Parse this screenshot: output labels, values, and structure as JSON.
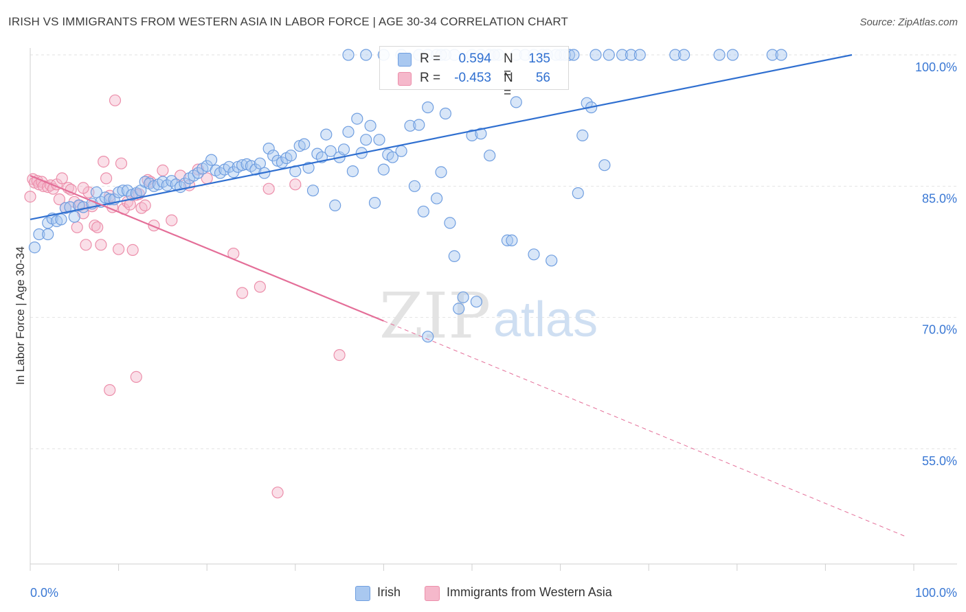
{
  "header": {
    "title": "IRISH VS IMMIGRANTS FROM WESTERN ASIA IN LABOR FORCE | AGE 30-34 CORRELATION CHART",
    "source": "Source: ZipAtlas.com"
  },
  "watermark": {
    "zip": "ZIP",
    "atlas": "atlas"
  },
  "legend_top": {
    "rows": [
      {
        "r_label": "R =",
        "r_value": "0.594",
        "n_label": "N =",
        "n_value": "135",
        "color": "#a9c8f0"
      },
      {
        "r_label": "R =",
        "r_value": "-0.453",
        "n_label": "N =",
        "n_value": "56",
        "color": "#f5b8cb"
      }
    ]
  },
  "legend_bottom": {
    "items": [
      {
        "label": "Irish",
        "color": "#a9c8f0"
      },
      {
        "label": "Immigrants from Western Asia",
        "color": "#f5b8cb"
      }
    ]
  },
  "chart_data": {
    "type": "scatter",
    "title": "IRISH VS IMMIGRANTS FROM WESTERN ASIA IN LABOR FORCE | AGE 30-34 CORRELATION CHART",
    "xlabel": "",
    "ylabel": "In Labor Force | Age 30-34",
    "xlim": [
      0,
      100
    ],
    "ylim": [
      40,
      101
    ],
    "x_tick_labels": [
      "0.0%",
      "100.0%"
    ],
    "y_ticks": [
      100,
      85,
      70,
      55
    ],
    "y_tick_labels": [
      "100.0%",
      "85.0%",
      "70.0%",
      "55.0%"
    ],
    "grid": true,
    "legend": "top-center",
    "series": [
      {
        "name": "Irish",
        "color": "#a9c8f0",
        "edge": "#6f9ee0",
        "trend": {
          "x0": 0,
          "y0": 81.2,
          "x1": 93,
          "y1": 100.0,
          "color": "#2f6fd0"
        },
        "points": [
          [
            0.5,
            78
          ],
          [
            1,
            79.5
          ],
          [
            2,
            79.5
          ],
          [
            2,
            80.8
          ],
          [
            2.5,
            81.3
          ],
          [
            3,
            81
          ],
          [
            3.5,
            81.2
          ],
          [
            4,
            82.5
          ],
          [
            4.5,
            82.6
          ],
          [
            5,
            81.5
          ],
          [
            5.5,
            82.8
          ],
          [
            6,
            82.6
          ],
          [
            7,
            83
          ],
          [
            7.5,
            84.3
          ],
          [
            8,
            83.2
          ],
          [
            8.5,
            83.7
          ],
          [
            9,
            83.5
          ],
          [
            9.5,
            83.5
          ],
          [
            10,
            84.3
          ],
          [
            10.5,
            84.5
          ],
          [
            11,
            84.5
          ],
          [
            11.5,
            84
          ],
          [
            12,
            84.2
          ],
          [
            12.5,
            84.5
          ],
          [
            13,
            85.5
          ],
          [
            13.5,
            85.3
          ],
          [
            14,
            85
          ],
          [
            14.5,
            85.2
          ],
          [
            15,
            85.5
          ],
          [
            15.5,
            85.1
          ],
          [
            16,
            85.6
          ],
          [
            16.5,
            85.2
          ],
          [
            17,
            84.9
          ],
          [
            17.5,
            85.3
          ],
          [
            18,
            85.9
          ],
          [
            18.5,
            86.2
          ],
          [
            19,
            86.5
          ],
          [
            19.5,
            87
          ],
          [
            20,
            87.3
          ],
          [
            20.5,
            88
          ],
          [
            21,
            86.8
          ],
          [
            21.5,
            86.5
          ],
          [
            22,
            86.9
          ],
          [
            22.5,
            87.2
          ],
          [
            23,
            86.6
          ],
          [
            23.5,
            87.2
          ],
          [
            24,
            87.4
          ],
          [
            24.5,
            87.5
          ],
          [
            25,
            87.3
          ],
          [
            25.5,
            86.9
          ],
          [
            26,
            87.6
          ],
          [
            26.5,
            86.5
          ],
          [
            27,
            89.3
          ],
          [
            27.5,
            88.5
          ],
          [
            28,
            87.9
          ],
          [
            28.5,
            87.7
          ],
          [
            29,
            88.2
          ],
          [
            29.5,
            88.5
          ],
          [
            30,
            86.7
          ],
          [
            30.5,
            89.6
          ],
          [
            31,
            89.8
          ],
          [
            31.5,
            87.1
          ],
          [
            32,
            84.5
          ],
          [
            32.5,
            88.7
          ],
          [
            33,
            88.3
          ],
          [
            33.5,
            90.9
          ],
          [
            34,
            89
          ],
          [
            34.5,
            82.8
          ],
          [
            35,
            88.3
          ],
          [
            35.5,
            89.2
          ],
          [
            36,
            91.2
          ],
          [
            36.5,
            86.7
          ],
          [
            37,
            92.7
          ],
          [
            37.5,
            88.8
          ],
          [
            38,
            90.3
          ],
          [
            38.5,
            91.9
          ],
          [
            39,
            83.1
          ],
          [
            39.5,
            90.3
          ],
          [
            40,
            86.9
          ],
          [
            40.5,
            88.6
          ],
          [
            41,
            88.3
          ],
          [
            42,
            89
          ],
          [
            43,
            91.9
          ],
          [
            43.5,
            85
          ],
          [
            44,
            92
          ],
          [
            44.5,
            82.1
          ],
          [
            45,
            94
          ],
          [
            46,
            83.6
          ],
          [
            46.5,
            86.6
          ],
          [
            47,
            93.3
          ],
          [
            47.5,
            80.8
          ],
          [
            48,
            77
          ],
          [
            48.5,
            71
          ],
          [
            49,
            72.3
          ],
          [
            50,
            90.8
          ],
          [
            50.5,
            71.8
          ],
          [
            51,
            91
          ],
          [
            52,
            88.5
          ],
          [
            54,
            78.8
          ],
          [
            54.5,
            78.8
          ],
          [
            55,
            94.6
          ],
          [
            57,
            77.2
          ],
          [
            59,
            76.5
          ],
          [
            62,
            84.2
          ],
          [
            62.5,
            90.8
          ],
          [
            63,
            94.5
          ],
          [
            63.5,
            94
          ],
          [
            65,
            87.4
          ],
          [
            60,
            100
          ],
          [
            61,
            100
          ],
          [
            64,
            100
          ],
          [
            65.5,
            100
          ],
          [
            67,
            100
          ],
          [
            68,
            100
          ],
          [
            69,
            100
          ],
          [
            73,
            100
          ],
          [
            74,
            100
          ],
          [
            78,
            100
          ],
          [
            79.5,
            100
          ],
          [
            84,
            100
          ],
          [
            85,
            100
          ],
          [
            48,
            100
          ],
          [
            52,
            100
          ],
          [
            53,
            100
          ],
          [
            55,
            100
          ],
          [
            56,
            100
          ],
          [
            57,
            100
          ],
          [
            58,
            100
          ],
          [
            60.5,
            100
          ],
          [
            59.5,
            100
          ],
          [
            45,
            100
          ],
          [
            46,
            100
          ],
          [
            47,
            100
          ],
          [
            50,
            100
          ],
          [
            51,
            100
          ],
          [
            52.5,
            100
          ],
          [
            58.5,
            100
          ],
          [
            61.5,
            100
          ],
          [
            38,
            100
          ],
          [
            40,
            100
          ],
          [
            42,
            100
          ],
          [
            44,
            100
          ],
          [
            36,
            100
          ],
          [
            46.5,
            100
          ],
          [
            45,
            67.8
          ]
        ]
      },
      {
        "name": "Immigrants from Western Asia",
        "color": "#f5b8cb",
        "edge": "#ec8eaa",
        "trend": {
          "x0": 0,
          "y0": 86.2,
          "x1": 40,
          "y1": 69.6,
          "color": "#e46e98",
          "dash_to_x": 99,
          "dash_to_y": 45
        },
        "points": [
          [
            0,
            83.8
          ],
          [
            0.3,
            85.8
          ],
          [
            0.5,
            85.4
          ],
          [
            0.8,
            85.6
          ],
          [
            1,
            85.2
          ],
          [
            1.3,
            85.5
          ],
          [
            1.5,
            85
          ],
          [
            2,
            84.9
          ],
          [
            2.3,
            85.1
          ],
          [
            2.6,
            84.7
          ],
          [
            3,
            85.2
          ],
          [
            3.3,
            83.5
          ],
          [
            3.6,
            85.9
          ],
          [
            4,
            82.5
          ],
          [
            4.3,
            84.8
          ],
          [
            4.6,
            84.6
          ],
          [
            5,
            83.2
          ],
          [
            5.3,
            80.3
          ],
          [
            5.6,
            82.8
          ],
          [
            6,
            81.9
          ],
          [
            6.3,
            78.3
          ],
          [
            6.6,
            84.3
          ],
          [
            7,
            82.7
          ],
          [
            7.3,
            80.5
          ],
          [
            7.6,
            80.3
          ],
          [
            8,
            78.3
          ],
          [
            8.3,
            87.8
          ],
          [
            8.6,
            85.9
          ],
          [
            9,
            83.9
          ],
          [
            9.3,
            82.6
          ],
          [
            9.6,
            94.8
          ],
          [
            10,
            77.8
          ],
          [
            10.3,
            87.6
          ],
          [
            10.6,
            82.4
          ],
          [
            11,
            83.2
          ],
          [
            11.3,
            82.9
          ],
          [
            11.6,
            77.7
          ],
          [
            12,
            84
          ],
          [
            12.3,
            84.1
          ],
          [
            12.6,
            82.5
          ],
          [
            13,
            82.8
          ],
          [
            13.3,
            85.7
          ],
          [
            13.6,
            85.5
          ],
          [
            14,
            80.5
          ],
          [
            15,
            86.8
          ],
          [
            16,
            81.1
          ],
          [
            17,
            86.2
          ],
          [
            18,
            85.1
          ],
          [
            19,
            86.9
          ],
          [
            20,
            85.9
          ],
          [
            23,
            77.3
          ],
          [
            24,
            72.8
          ],
          [
            26,
            73.5
          ],
          [
            27,
            84.7
          ],
          [
            30,
            85.2
          ],
          [
            35,
            65.7
          ],
          [
            12,
            63.2
          ],
          [
            9,
            61.7
          ],
          [
            6,
            84.8
          ],
          [
            28,
            50
          ]
        ]
      }
    ]
  }
}
